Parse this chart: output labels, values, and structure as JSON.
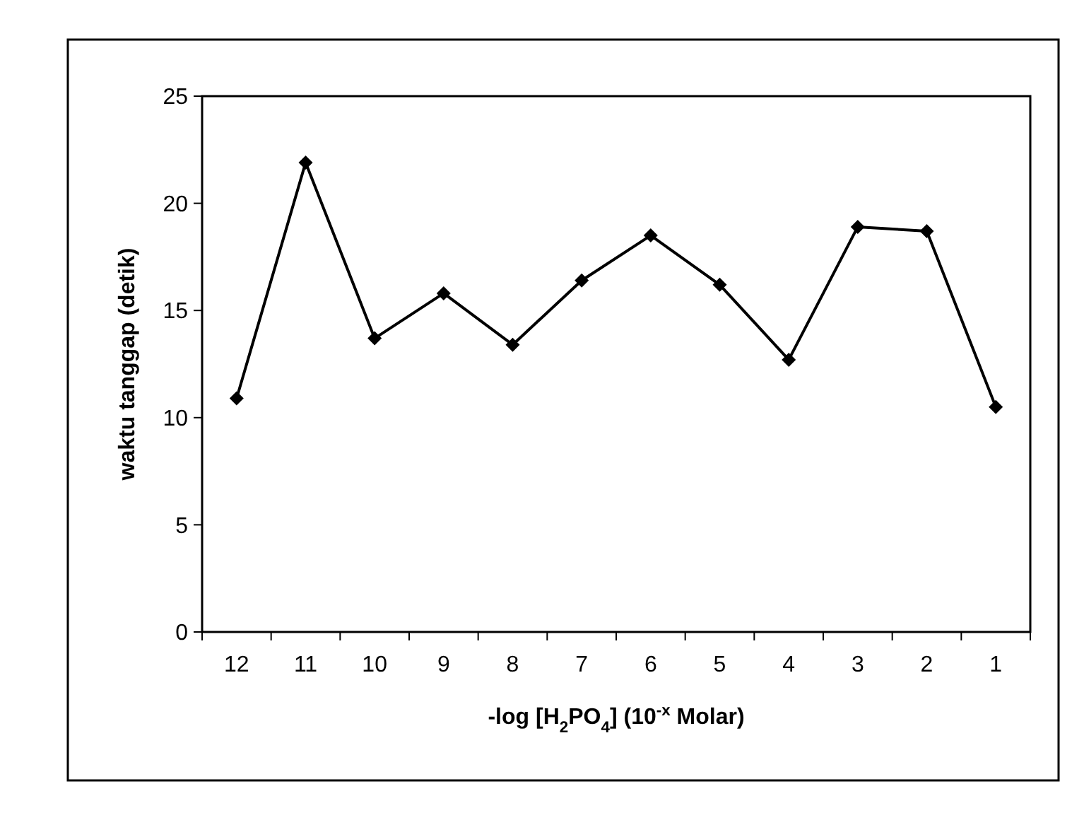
{
  "chart_data": {
    "type": "line",
    "xlabel": "-log [H$_{2}$PO$_{4}$] (10$^{-x}$ Molar)",
    "ylabel": "waktu tanggap (detik)",
    "categories": [
      "12",
      "11",
      "10",
      "9",
      "8",
      "7",
      "6",
      "5",
      "4",
      "3",
      "2",
      "1"
    ],
    "series": [
      {
        "color": "#000000",
        "values": [
          10.9,
          21.9,
          13.7,
          15.8,
          13.4,
          16.4,
          18.5,
          16.2,
          12.7,
          18.9,
          18.7,
          10.5
        ]
      }
    ],
    "ylim": [
      0,
      25
    ],
    "yticks": [
      0,
      5,
      10,
      15,
      20,
      25
    ],
    "marker": "diamond",
    "line_style": "solid"
  }
}
